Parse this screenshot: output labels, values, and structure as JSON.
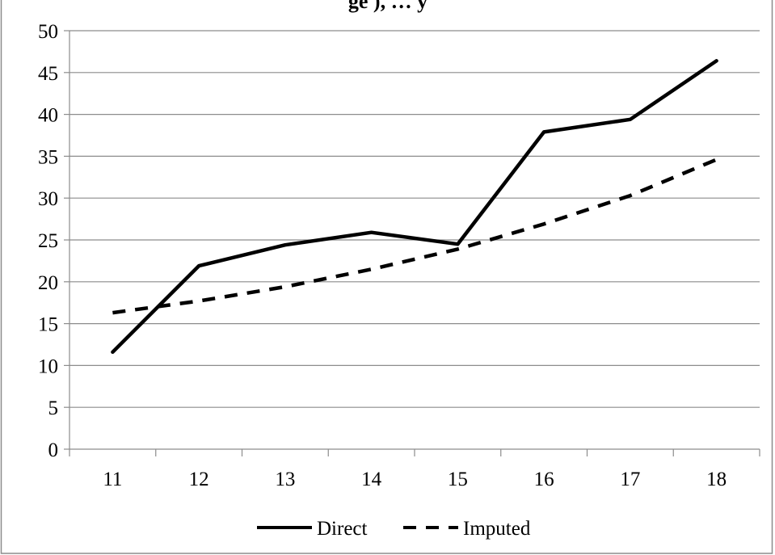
{
  "chart_data": {
    "type": "line",
    "title": "",
    "title_fragment": "ge ), … y",
    "xlabel": "",
    "ylabel": "",
    "x": [
      11,
      12,
      13,
      14,
      15,
      16,
      17,
      18
    ],
    "x_tick_labels": [
      "11",
      "12",
      "13",
      "14",
      "15",
      "16",
      "17",
      "18"
    ],
    "y_ticks": [
      0,
      5,
      10,
      15,
      20,
      25,
      30,
      35,
      40,
      45,
      50
    ],
    "y_tick_labels": [
      "0",
      "5",
      "10",
      "15",
      "20",
      "25",
      "30",
      "35",
      "40",
      "45",
      "50"
    ],
    "ylim": [
      0,
      50
    ],
    "grid": "horizontal",
    "legend_position": "bottom",
    "series": [
      {
        "name": "Direct",
        "style": "solid",
        "color": "#000000",
        "values": [
          11.6,
          21.9,
          24.4,
          25.9,
          24.5,
          37.9,
          39.4,
          46.4
        ]
      },
      {
        "name": "Imputed",
        "style": "dashed",
        "color": "#000000",
        "values": [
          16.3,
          17.7,
          19.4,
          21.5,
          23.9,
          26.9,
          30.3,
          34.6
        ]
      }
    ]
  }
}
